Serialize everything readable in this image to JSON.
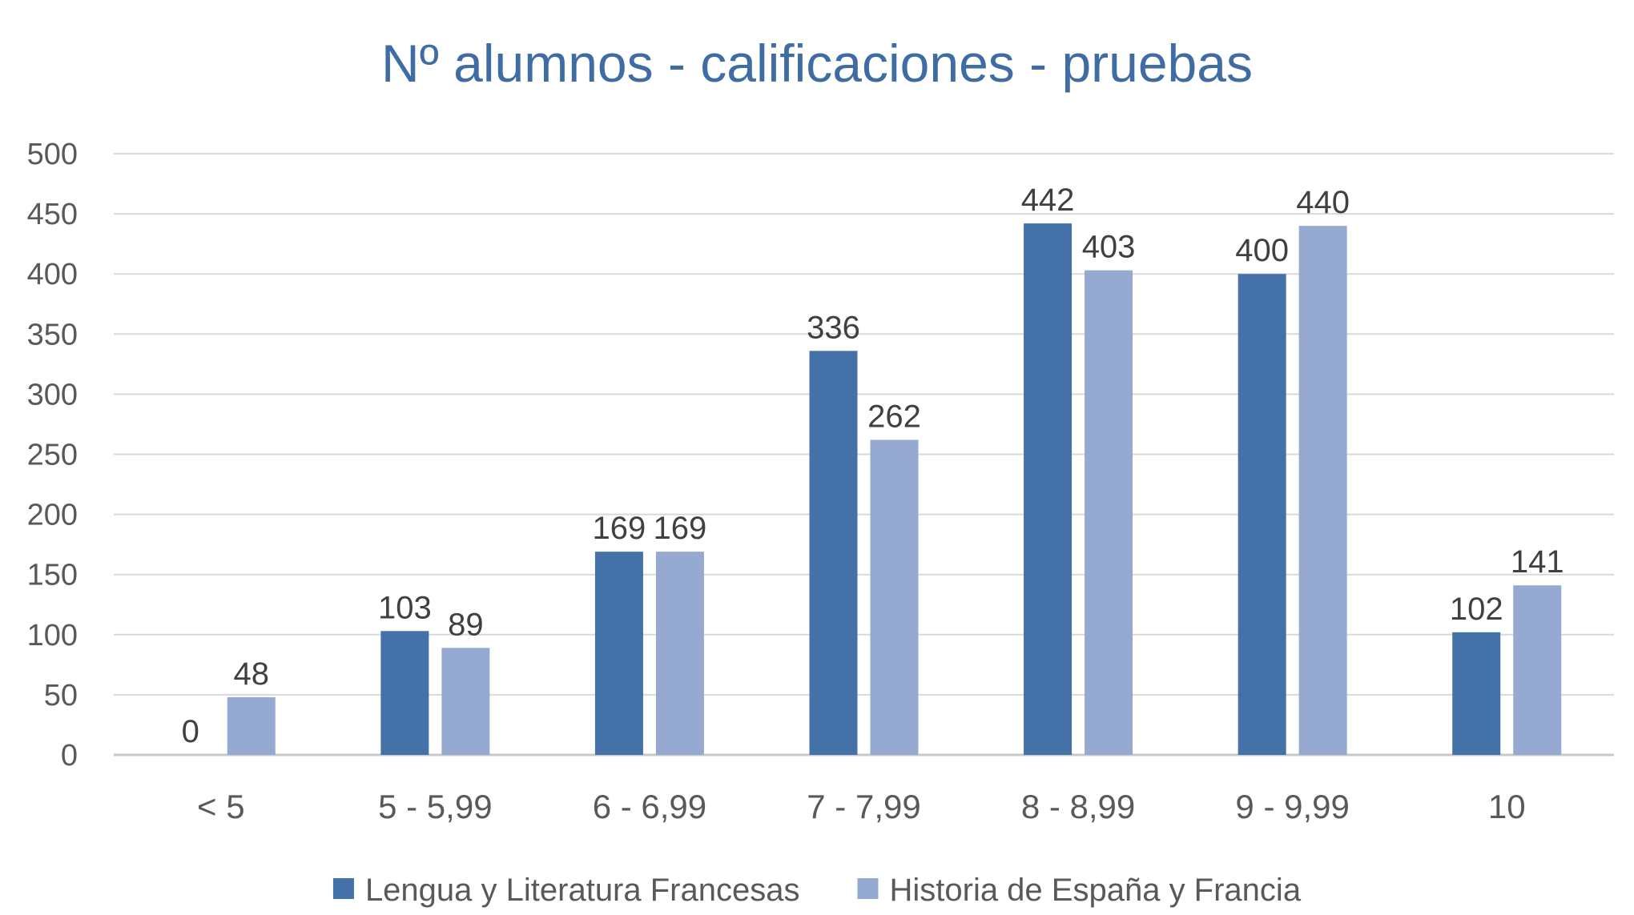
{
  "chart_data": {
    "type": "bar",
    "title": "Nº alumnos - calificaciones - pruebas",
    "categories": [
      "< 5",
      "5 - 5,99",
      "6 - 6,99",
      "7 - 7,99",
      "8 - 8,99",
      "9 - 9,99",
      "10"
    ],
    "series": [
      {
        "name": "Lengua y Literatura Francesas",
        "values": [
          0,
          103,
          169,
          336,
          442,
          400,
          102
        ],
        "color": "#4472a8"
      },
      {
        "name": "Historia de España y Francia",
        "values": [
          48,
          89,
          169,
          262,
          403,
          440,
          141
        ],
        "color": "#95a9d1"
      }
    ],
    "yticks": [
      0,
      50,
      100,
      150,
      200,
      250,
      300,
      350,
      400,
      450,
      500
    ],
    "ylim": [
      0,
      500
    ],
    "grid": true,
    "legend": "bottom",
    "data_labels": true
  }
}
